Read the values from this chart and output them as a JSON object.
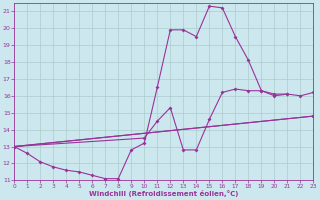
{
  "background_color": "#cce8ee",
  "grid_color": "#aacccc",
  "line_color": "#993399",
  "marker": "D",
  "marker_size": 2.0,
  "line_width": 0.8,
  "xlim": [
    0,
    23
  ],
  "ylim": [
    11,
    21.5
  ],
  "yticks": [
    11,
    12,
    13,
    14,
    15,
    16,
    17,
    18,
    19,
    20,
    21
  ],
  "xticks": [
    0,
    1,
    2,
    3,
    4,
    5,
    6,
    7,
    8,
    9,
    10,
    11,
    12,
    13,
    14,
    15,
    16,
    17,
    18,
    19,
    20,
    21,
    22,
    23
  ],
  "xlabel": "Windchill (Refroidissement éolien,°C)",
  "line1_x": [
    0,
    1,
    2,
    3,
    4,
    5,
    6,
    7,
    8,
    9,
    10,
    11,
    12,
    13,
    14,
    15,
    16,
    17,
    18,
    19,
    20,
    21
  ],
  "line1_y": [
    13.0,
    12.6,
    12.1,
    11.8,
    11.6,
    11.5,
    11.3,
    11.1,
    11.1,
    12.8,
    13.2,
    16.5,
    19.9,
    19.9,
    19.5,
    21.3,
    21.2,
    19.5,
    18.1,
    16.3,
    16.0,
    16.1
  ],
  "line2_x": [
    0,
    23
  ],
  "line2_y": [
    13.0,
    14.8
  ],
  "line3_x": [
    0,
    10,
    11,
    12,
    13,
    14,
    15,
    16,
    17,
    18,
    19,
    20,
    21,
    22,
    23
  ],
  "line3_y": [
    13.0,
    13.5,
    14.5,
    15.3,
    12.8,
    12.8,
    14.6,
    16.2,
    16.4,
    16.3,
    16.3,
    16.1,
    16.1,
    16.0,
    16.2
  ],
  "line4_x": [
    0,
    23
  ],
  "line4_y": [
    13.0,
    14.8
  ]
}
